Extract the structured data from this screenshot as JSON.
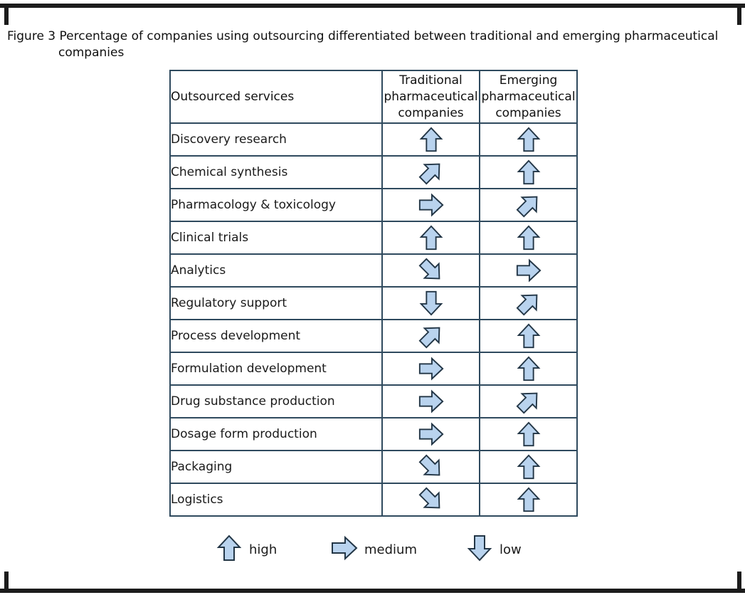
{
  "figure": {
    "label": "Figure 3",
    "title_line1": "Percentage of companies using outsourcing differentiated between traditional and emerging pharmaceutical",
    "title_line2": "companies"
  },
  "table": {
    "header": {
      "services": "Outsourced services",
      "traditional_l1": "Traditional",
      "traditional_l2": "pharmaceutical",
      "traditional_l3": "companies",
      "emerging_l1": "Emerging",
      "emerging_l2": "pharmaceutical",
      "emerging_l3": "companies"
    },
    "rows": [
      {
        "service": "Discovery research",
        "traditional": "high",
        "emerging": "high"
      },
      {
        "service": "Chemical synthesis",
        "traditional": "medium-high",
        "emerging": "high"
      },
      {
        "service": "Pharmacology & toxicology",
        "traditional": "medium",
        "emerging": "medium-high"
      },
      {
        "service": "Clinical trials",
        "traditional": "high",
        "emerging": "high"
      },
      {
        "service": "Analytics",
        "traditional": "medium-low",
        "emerging": "medium"
      },
      {
        "service": "Regulatory support",
        "traditional": "low",
        "emerging": "medium-high"
      },
      {
        "service": "Process development",
        "traditional": "medium-high",
        "emerging": "high"
      },
      {
        "service": "Formulation development",
        "traditional": "medium",
        "emerging": "high"
      },
      {
        "service": "Drug substance production",
        "traditional": "medium",
        "emerging": "medium-high"
      },
      {
        "service": "Dosage form production",
        "traditional": "medium",
        "emerging": "high"
      },
      {
        "service": "Packaging",
        "traditional": "medium-low",
        "emerging": "high"
      },
      {
        "service": "Logistics",
        "traditional": "medium-low",
        "emerging": "high"
      }
    ]
  },
  "legend": {
    "high": "high",
    "medium": "medium",
    "low": "low"
  },
  "colors": {
    "arrow_fill": "#b9d3ee",
    "arrow_stroke": "#233646",
    "grid_border": "#2f4a5e"
  }
}
